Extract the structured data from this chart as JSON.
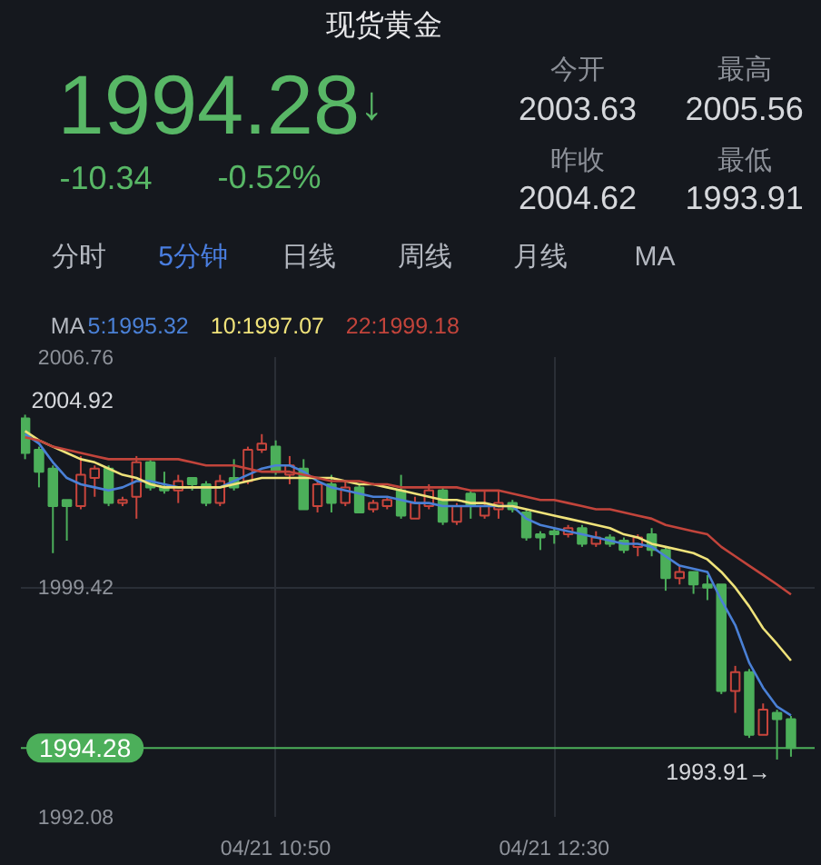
{
  "chart_data": {
    "type": "candlestick",
    "title": "现货黄金",
    "categories": [
      null,
      null,
      null,
      null,
      null,
      null,
      null,
      null,
      null,
      null,
      null,
      null,
      null,
      null,
      null,
      null,
      null,
      null,
      "04/21 10:50",
      null,
      null,
      null,
      null,
      null,
      null,
      null,
      null,
      null,
      null,
      null,
      null,
      null,
      null,
      null,
      null,
      null,
      null,
      null,
      "04/21 12:30",
      null,
      null,
      null,
      null,
      null,
      null,
      null,
      null,
      null,
      null,
      null,
      null,
      null,
      null,
      null,
      null,
      null
    ],
    "ohlc": [
      [
        2004.8,
        2004.92,
        2003.5,
        2003.7
      ],
      [
        2003.8,
        2003.9,
        2002.6,
        2003.1
      ],
      [
        2003.2,
        2003.3,
        2000.5,
        2002.0
      ],
      [
        2002.2,
        2002.2,
        2000.9,
        2002.0
      ],
      [
        2002.0,
        2003.6,
        2001.9,
        2003.0
      ],
      [
        2002.9,
        2003.3,
        2002.3,
        2003.2
      ],
      [
        2003.2,
        2003.3,
        2002.0,
        2002.1
      ],
      [
        2002.1,
        2002.3,
        2002.0,
        2002.2
      ],
      [
        2002.3,
        2003.6,
        2001.6,
        2003.4
      ],
      [
        2003.4,
        2003.5,
        2002.5,
        2002.6
      ],
      [
        2002.6,
        2003.1,
        2002.4,
        2002.5
      ],
      [
        2002.5,
        2003.0,
        2002.1,
        2002.8
      ],
      [
        2002.9,
        2002.9,
        2002.5,
        2002.7
      ],
      [
        2002.7,
        2002.8,
        2002.0,
        2002.1
      ],
      [
        2002.1,
        2003.0,
        2002.0,
        2002.8
      ],
      [
        2002.9,
        2003.5,
        2002.5,
        2002.6
      ],
      [
        2002.8,
        2003.9,
        2002.7,
        2003.8
      ],
      [
        2003.8,
        2004.3,
        2003.7,
        2004.0
      ],
      [
        2003.9,
        2004.1,
        2003.0,
        2003.1
      ],
      [
        2003.0,
        2003.6,
        2002.7,
        2003.3
      ],
      [
        2003.2,
        2003.5,
        2001.9,
        2001.9
      ],
      [
        2002.0,
        2002.8,
        2001.8,
        2002.7
      ],
      [
        2002.7,
        2003.0,
        2001.8,
        2002.1
      ],
      [
        2002.1,
        2002.8,
        2002.0,
        2002.6
      ],
      [
        2002.6,
        2002.7,
        2001.8,
        2001.8
      ],
      [
        2001.9,
        2002.2,
        2001.8,
        2002.1
      ],
      [
        2002.0,
        2002.3,
        2001.9,
        2002.2
      ],
      [
        2002.5,
        2003.0,
        2001.6,
        2001.7
      ],
      [
        2001.6,
        2002.3,
        2001.6,
        2002.1
      ],
      [
        2002.0,
        2002.7,
        2001.9,
        2002.5
      ],
      [
        2002.5,
        2002.6,
        2001.4,
        2001.5
      ],
      [
        2001.5,
        2002.1,
        2001.4,
        2002.0
      ],
      [
        2002.4,
        2002.5,
        2001.6,
        2002.0
      ],
      [
        2001.7,
        2002.5,
        2001.6,
        2002.0
      ],
      [
        2001.9,
        2002.5,
        2001.6,
        2002.1
      ],
      [
        2002.1,
        2002.2,
        2001.8,
        2001.9
      ],
      [
        2001.8,
        2001.9,
        2000.9,
        2001.0
      ],
      [
        2001.1,
        2001.2,
        2000.6,
        2001.0
      ],
      [
        2001.2,
        2001.3,
        2000.8,
        2001.1
      ],
      [
        2001.1,
        2001.4,
        2001.0,
        2001.3
      ],
      [
        2001.3,
        2001.4,
        2000.7,
        2000.8
      ],
      [
        2000.8,
        2001.2,
        2000.7,
        2001.0
      ],
      [
        2001.0,
        2001.1,
        2000.7,
        2000.8
      ],
      [
        2000.9,
        2001.0,
        2000.5,
        2000.6
      ],
      [
        2000.7,
        2001.1,
        2000.4,
        2001.0
      ],
      [
        2001.1,
        2001.3,
        2000.4,
        2000.6
      ],
      [
        2000.6,
        2000.7,
        1999.3,
        1999.7
      ],
      [
        1999.7,
        2000.1,
        1999.5,
        1999.9
      ],
      [
        1999.9,
        1999.9,
        1999.2,
        1999.5
      ],
      [
        1999.5,
        1999.8,
        1999.0,
        1999.4
      ],
      [
        1999.5,
        1999.5,
        1996.0,
        1996.1
      ],
      [
        1996.1,
        1996.9,
        1995.4,
        1996.7
      ],
      [
        1996.7,
        1996.8,
        1994.6,
        1994.7
      ],
      [
        1994.7,
        1995.7,
        1994.7,
        1995.5
      ],
      [
        1995.4,
        1995.5,
        1993.91,
        1995.2
      ],
      [
        1995.2,
        1995.3,
        1994.0,
        1994.28
      ]
    ],
    "colors": [
      "#4caf5a",
      "#4caf5a",
      "#4caf5a",
      "#4caf5a",
      "#c8453c",
      "#c8453c",
      "#4caf5a",
      "#c8453c",
      "#c8453c",
      "#4caf5a",
      "#4caf5a",
      "#c8453c",
      "#4caf5a",
      "#4caf5a",
      "#c8453c",
      "#4caf5a",
      "#c8453c",
      "#c8453c",
      "#4caf5a",
      "#c8453c",
      "#4caf5a",
      "#c8453c",
      "#4caf5a",
      "#c8453c",
      "#4caf5a",
      "#c8453c",
      "#c8453c",
      "#4caf5a",
      "#c8453c",
      "#c8453c",
      "#4caf5a",
      "#c8453c",
      "#4caf5a",
      "#c8453c",
      "#c8453c",
      "#4caf5a",
      "#4caf5a",
      "#4caf5a",
      "#4caf5a",
      "#c8453c",
      "#4caf5a",
      "#c8453c",
      "#4caf5a",
      "#4caf5a",
      "#c8453c",
      "#4caf5a",
      "#4caf5a",
      "#c8453c",
      "#4caf5a",
      "#4caf5a",
      "#4caf5a",
      "#c8453c",
      "#4caf5a",
      "#c8453c",
      "#4caf5a",
      "#4caf5a"
    ],
    "series": [
      {
        "type": "line",
        "name": "5:1995.32",
        "color": "#4a80d6",
        "values": [
          2004.3,
          2004.0,
          2003.4,
          2002.9,
          2002.7,
          2002.6,
          2002.5,
          2002.6,
          2002.8,
          2002.8,
          2002.7,
          2002.6,
          2002.6,
          2002.6,
          2002.6,
          2002.8,
          2003.0,
          2003.2,
          2003.3,
          2003.3,
          2003.1,
          2002.8,
          2002.6,
          2002.5,
          2002.4,
          2002.3,
          2002.3,
          2002.2,
          2002.1,
          2002.1,
          2002.0,
          2002.0,
          2002.0,
          2002.0,
          2002.0,
          2002.0,
          2001.6,
          2001.4,
          2001.3,
          2001.2,
          2001.1,
          2001.0,
          2000.9,
          2000.8,
          2000.8,
          2000.7,
          2000.4,
          2000.1,
          2000.0,
          1999.9,
          1999.0,
          1998.2,
          1997.0,
          1996.2,
          1995.6,
          1995.32
        ]
      },
      {
        "type": "line",
        "name": "10:1997.07",
        "color": "#efe27a",
        "values": [
          2004.4,
          2004.1,
          2003.9,
          2003.7,
          2003.5,
          2003.4,
          2003.2,
          2003.0,
          2002.9,
          2002.7,
          2002.6,
          2002.6,
          2002.6,
          2002.6,
          2002.6,
          2002.7,
          2002.8,
          2002.9,
          2002.9,
          2002.9,
          2002.9,
          2002.9,
          2002.9,
          2002.8,
          2002.7,
          2002.7,
          2002.6,
          2002.5,
          2002.4,
          2002.3,
          2002.2,
          2002.2,
          2002.1,
          2002.1,
          2002.0,
          2002.0,
          2001.9,
          2001.8,
          2001.7,
          2001.6,
          2001.5,
          2001.4,
          2001.3,
          2001.1,
          2001.0,
          2000.8,
          2000.7,
          2000.6,
          2000.5,
          2000.3,
          1999.9,
          1999.4,
          1998.8,
          1998.1,
          1997.6,
          1997.07
        ]
      },
      {
        "type": "line",
        "name": "22:1999.18",
        "color": "#c2443b",
        "values": [
          2004.2,
          2004.1,
          2003.9,
          2003.8,
          2003.7,
          2003.6,
          2003.5,
          2003.5,
          2003.5,
          2003.5,
          2003.5,
          2003.5,
          2003.4,
          2003.3,
          2003.3,
          2003.3,
          2003.2,
          2003.1,
          2003.1,
          2003.1,
          2003.0,
          2002.9,
          2002.8,
          2002.8,
          2002.8,
          2002.7,
          2002.7,
          2002.6,
          2002.6,
          2002.6,
          2002.6,
          2002.6,
          2002.5,
          2002.5,
          2002.5,
          2002.4,
          2002.3,
          2002.2,
          2002.2,
          2002.1,
          2002.0,
          2001.9,
          2001.9,
          2001.8,
          2001.7,
          2001.6,
          2001.4,
          2001.3,
          2001.2,
          2001.1,
          2000.7,
          2000.4,
          2000.1,
          1999.8,
          1999.5,
          1999.18
        ]
      }
    ],
    "legend_title": "MA",
    "legend": "top left",
    "ylim": [
      1992.08,
      2006.76
    ],
    "yticks": [
      2006.76,
      1999.42,
      1992.08
    ],
    "grid": true,
    "ref_lines": [
      {
        "axis": "y",
        "value": 1994.28,
        "label": "1994.28",
        "color": "#4caf5a"
      }
    ],
    "annotations": [
      "1994.28",
      "↓",
      "-10.34",
      "-0.52%",
      "今开",
      "2003.63",
      "最高",
      "2005.56",
      "昨收",
      "2004.62",
      "最低",
      "1993.91",
      "分时",
      "5分钟",
      "日线",
      "周线",
      "月线",
      "MA",
      "2004.92",
      "1993.91→"
    ]
  }
}
